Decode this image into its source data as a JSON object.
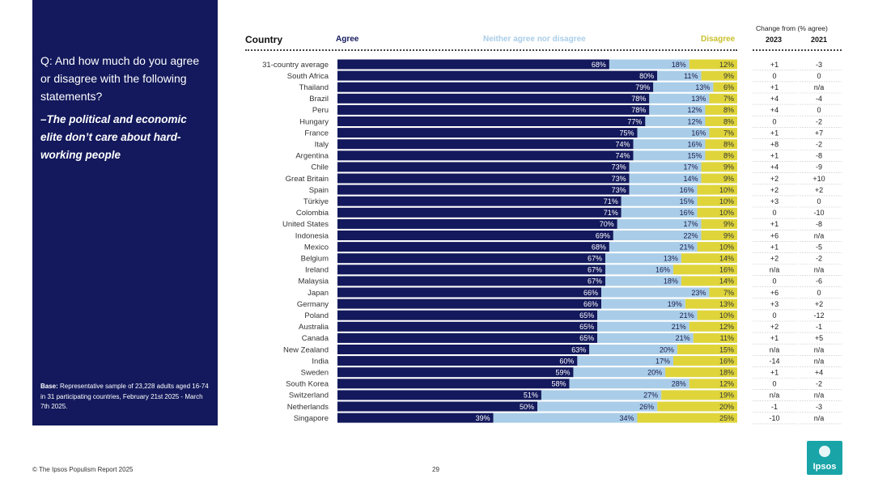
{
  "question": "Q: And how much do you agree or disagree with the following statements?",
  "statement": "–The political and economic elite don’t care about hard-working people",
  "base_label": "Base:",
  "base_text": " Representative sample of 23,228 adults aged 16-74 in 31 participating countries, February 21st 2025 - March 7th 2025.",
  "footer": "© The Ipsos Populism Report 2025",
  "page_number": "29",
  "logo_text": "Ipsos",
  "change_title": "Change from (% agree)",
  "year_a": "2023",
  "year_b": "2021",
  "colors": {
    "agree": "#13195c",
    "neither": "#a9cde8",
    "disagree": "#dfd53b",
    "panel": "#13195c"
  },
  "chart_data": {
    "type": "bar",
    "stacked": true,
    "orientation": "horizontal",
    "category_header": "Country",
    "categories": [
      "31-country average",
      "South Africa",
      "Thailand",
      "Brazil",
      "Peru",
      "Hungary",
      "France",
      "Italy",
      "Argentina",
      "Chile",
      "Great Britain",
      "Spain",
      "Türkiye",
      "Colombia",
      "United States",
      "Indonesia",
      "Mexico",
      "Belgium",
      "Ireland",
      "Malaysia",
      "Japan",
      "Germany",
      "Poland",
      "Australia",
      "Canada",
      "New Zealand",
      "India",
      "Sweden",
      "South Korea",
      "Switzerland",
      "Netherlands",
      "Singapore"
    ],
    "series": [
      {
        "name": "Agree",
        "values": [
          68,
          80,
          79,
          78,
          78,
          77,
          75,
          74,
          74,
          73,
          73,
          73,
          71,
          71,
          70,
          69,
          68,
          67,
          67,
          67,
          66,
          66,
          65,
          65,
          65,
          63,
          60,
          59,
          58,
          51,
          50,
          39
        ]
      },
      {
        "name": "Neither agree nor disagree",
        "values": [
          18,
          11,
          13,
          13,
          12,
          12,
          16,
          16,
          15,
          17,
          14,
          16,
          15,
          16,
          17,
          22,
          21,
          13,
          16,
          18,
          23,
          19,
          21,
          21,
          21,
          20,
          17,
          20,
          28,
          27,
          26,
          34
        ]
      },
      {
        "name": "Disagree",
        "values": [
          12,
          9,
          6,
          7,
          8,
          8,
          7,
          8,
          8,
          9,
          9,
          10,
          10,
          10,
          9,
          9,
          10,
          14,
          16,
          14,
          7,
          13,
          10,
          12,
          11,
          15,
          16,
          18,
          12,
          19,
          20,
          25
        ]
      }
    ],
    "change_2023": [
      "+1",
      "0",
      "+1",
      "+4",
      "+4",
      "0",
      "+1",
      "+8",
      "+1",
      "+4",
      "+2",
      "+2",
      "+3",
      "0",
      "+1",
      "+6",
      "+1",
      "+2",
      "n/a",
      "0",
      "+6",
      "+3",
      "0",
      "+2",
      "+1",
      "n/a",
      "-14",
      "+1",
      "0",
      "n/a",
      "-1",
      "-10"
    ],
    "change_2021": [
      "-3",
      "0",
      "n/a",
      "-4",
      "0",
      "-2",
      "+7",
      "-2",
      "-8",
      "-9",
      "+10",
      "+2",
      "0",
      "-10",
      "-8",
      "n/a",
      "-5",
      "-2",
      "n/a",
      "-6",
      "0",
      "+2",
      "-12",
      "-1",
      "+5",
      "n/a",
      "n/a",
      "+4",
      "-2",
      "n/a",
      "-3",
      "n/a"
    ],
    "xlim": [
      0,
      100
    ],
    "value_suffix": "%"
  }
}
